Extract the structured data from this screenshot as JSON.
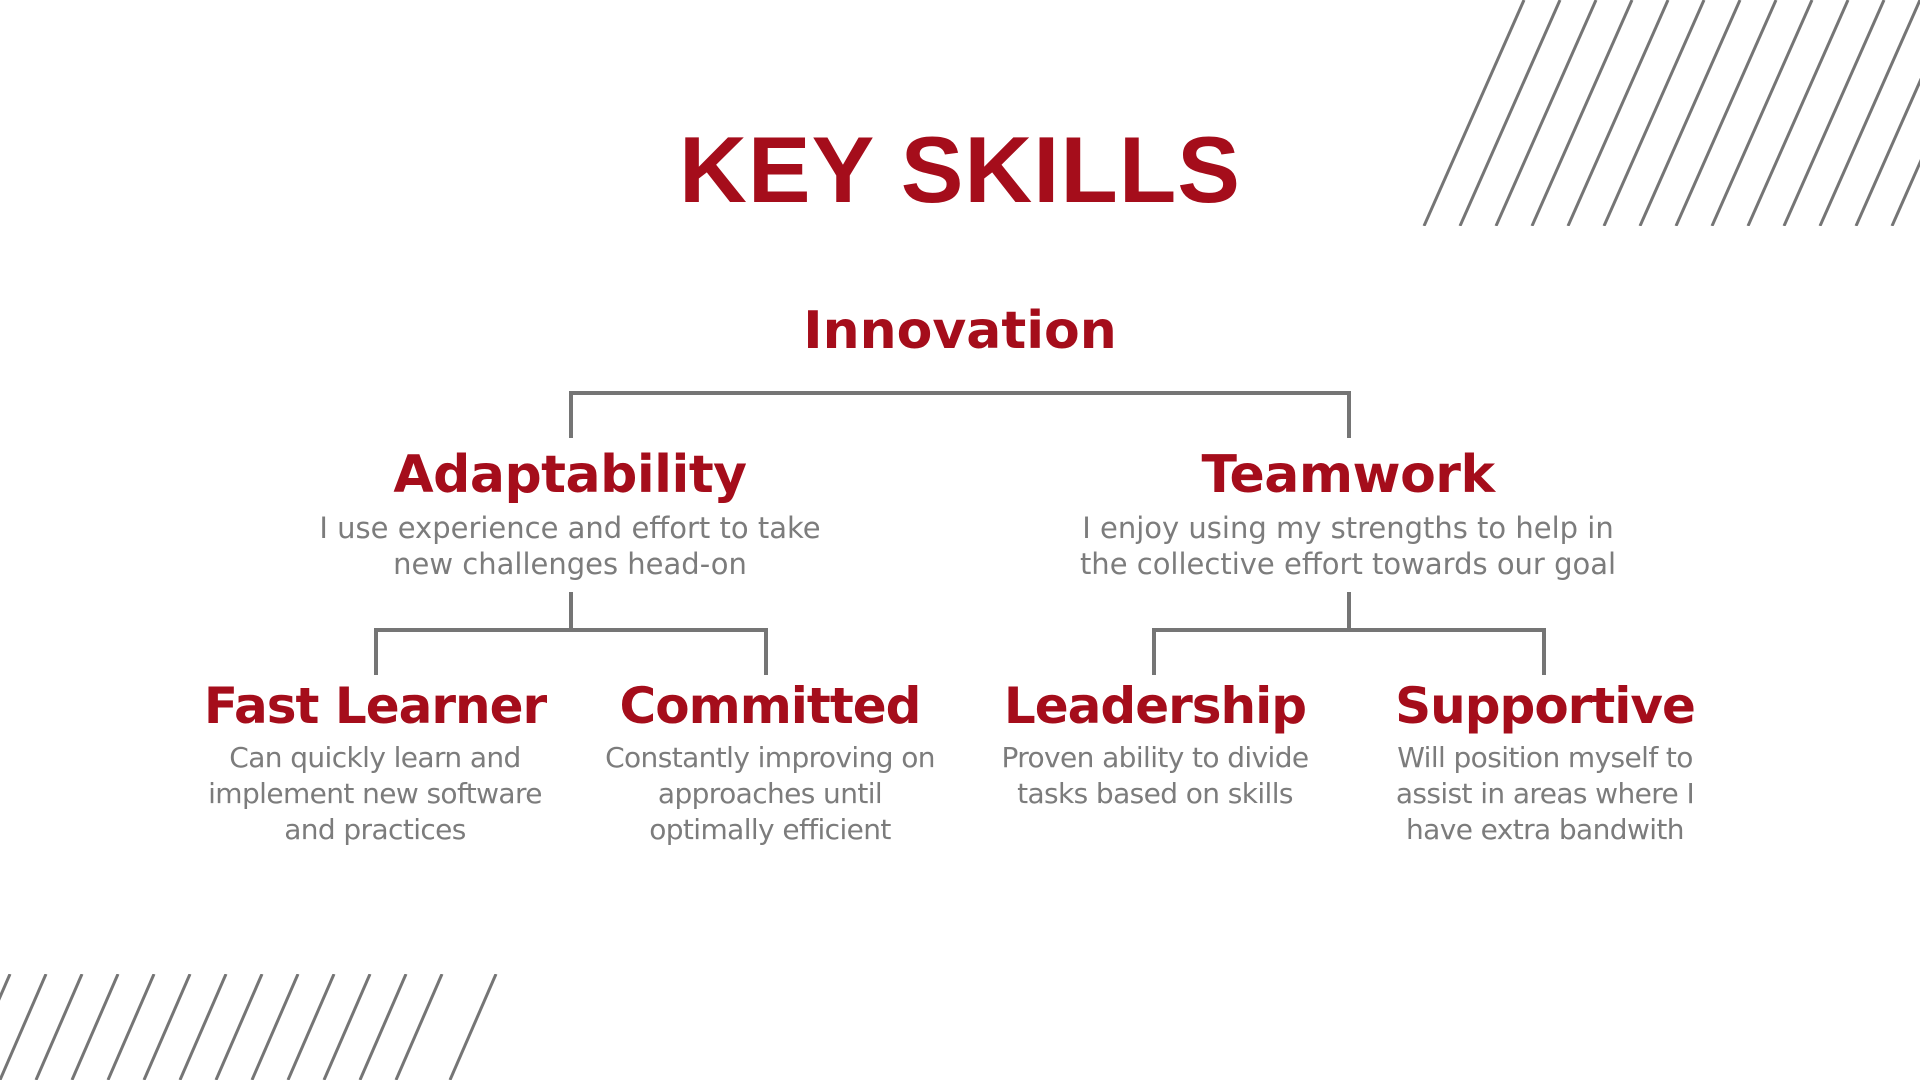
{
  "slide": {
    "title": "KEY SKILLS",
    "accent_color": "#a50d1b",
    "text_color": "#7c7c7c",
    "line_color": "#757575"
  },
  "tree": {
    "root": {
      "title": "Innovation"
    },
    "adaptability": {
      "title": "Adaptability",
      "desc_lines": [
        "I use experience and effort to take",
        "new challenges head-on"
      ]
    },
    "teamwork": {
      "title": "Teamwork",
      "desc_lines": [
        "I enjoy using my strengths to help in",
        "the collective effort towards our goal"
      ]
    },
    "fast_learner": {
      "title": "Fast Learner",
      "desc_lines": [
        "Can quickly learn and",
        "implement new software",
        "and practices"
      ]
    },
    "committed": {
      "title": "Committed",
      "desc_lines": [
        "Constantly improving on",
        "approaches until",
        "optimally efficient"
      ]
    },
    "leadership": {
      "title": "Leadership",
      "desc_lines": [
        "Proven ability to divide",
        "tasks based on skills"
      ]
    },
    "supportive": {
      "title": "Supportive",
      "desc_lines": [
        "Will position myself to",
        "assist in areas where I",
        "have extra bandwith"
      ]
    }
  }
}
